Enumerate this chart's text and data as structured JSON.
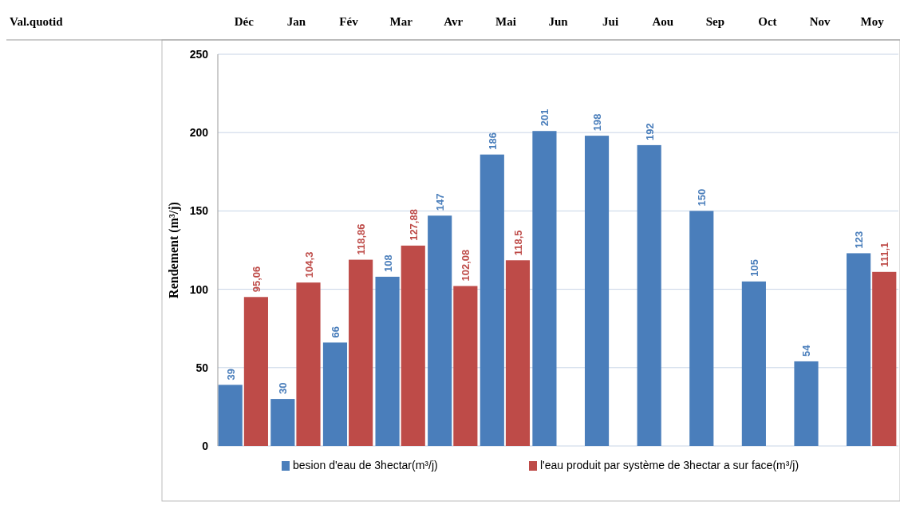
{
  "chart_data": {
    "type": "bar",
    "ylabel": "Rendement (m³/j)",
    "annotations": [
      "Val.quotid"
    ],
    "categories": [
      "Déc",
      "Jan",
      "Fév",
      "Mar",
      "Avr",
      "Mai",
      "Jun",
      "Jui",
      "Aou",
      "Sep",
      "Oct",
      "Nov",
      "Moy"
    ],
    "series": [
      {
        "name": "besion d'eau de 3hectar(m³/j)",
        "color": "#4a7ebb",
        "values": [
          39,
          30,
          66,
          108,
          147,
          186,
          201,
          198,
          192,
          150,
          105,
          54,
          123
        ],
        "value_labels": [
          "39",
          "30",
          "66",
          "108",
          "147",
          "186",
          "201",
          "198",
          "192",
          "150",
          "105",
          "54",
          "123"
        ]
      },
      {
        "name": "l'eau produit par système  de 3hectar a sur face(m³/j)",
        "color": "#be4b48",
        "values": [
          95.06,
          104.3,
          118.86,
          127.88,
          102.08,
          118.5,
          null,
          null,
          null,
          null,
          null,
          null,
          111.1
        ],
        "value_labels": [
          "95,06",
          "104,3",
          "118,86",
          "127,88",
          "102,08",
          "118,5",
          null,
          null,
          null,
          null,
          null,
          null,
          "111,1"
        ]
      }
    ],
    "ylim": [
      0,
      250
    ],
    "yticks": [
      0,
      50,
      100,
      150,
      200,
      250
    ],
    "grid": "y",
    "legend": "bottom"
  }
}
